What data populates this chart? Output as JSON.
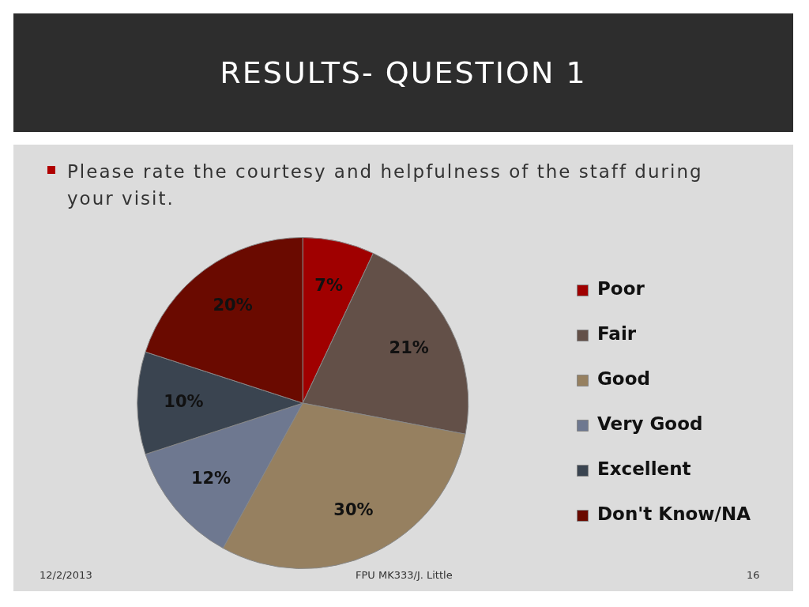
{
  "chart_data": {
    "type": "pie",
    "title": "RESULTS- QUESTION 1",
    "subtitle": "Please rate the courtesy and helpfulness of the staff during your visit.",
    "categories": [
      "Poor",
      "Fair",
      "Good",
      "Very Good",
      "Excellent",
      "Don't Know/NA"
    ],
    "values": [
      7,
      21,
      30,
      12,
      10,
      20
    ],
    "colors": [
      "#a00000",
      "#635048",
      "#968060",
      "#6e7890",
      "#3a4450",
      "#6a0a00"
    ],
    "value_labels": [
      "7%",
      "21%",
      "30%",
      "12%",
      "10%",
      "20%"
    ],
    "legend": "right",
    "annotations": [
      "12/2/2013",
      "FPU MK333/J. Little",
      "16"
    ]
  }
}
